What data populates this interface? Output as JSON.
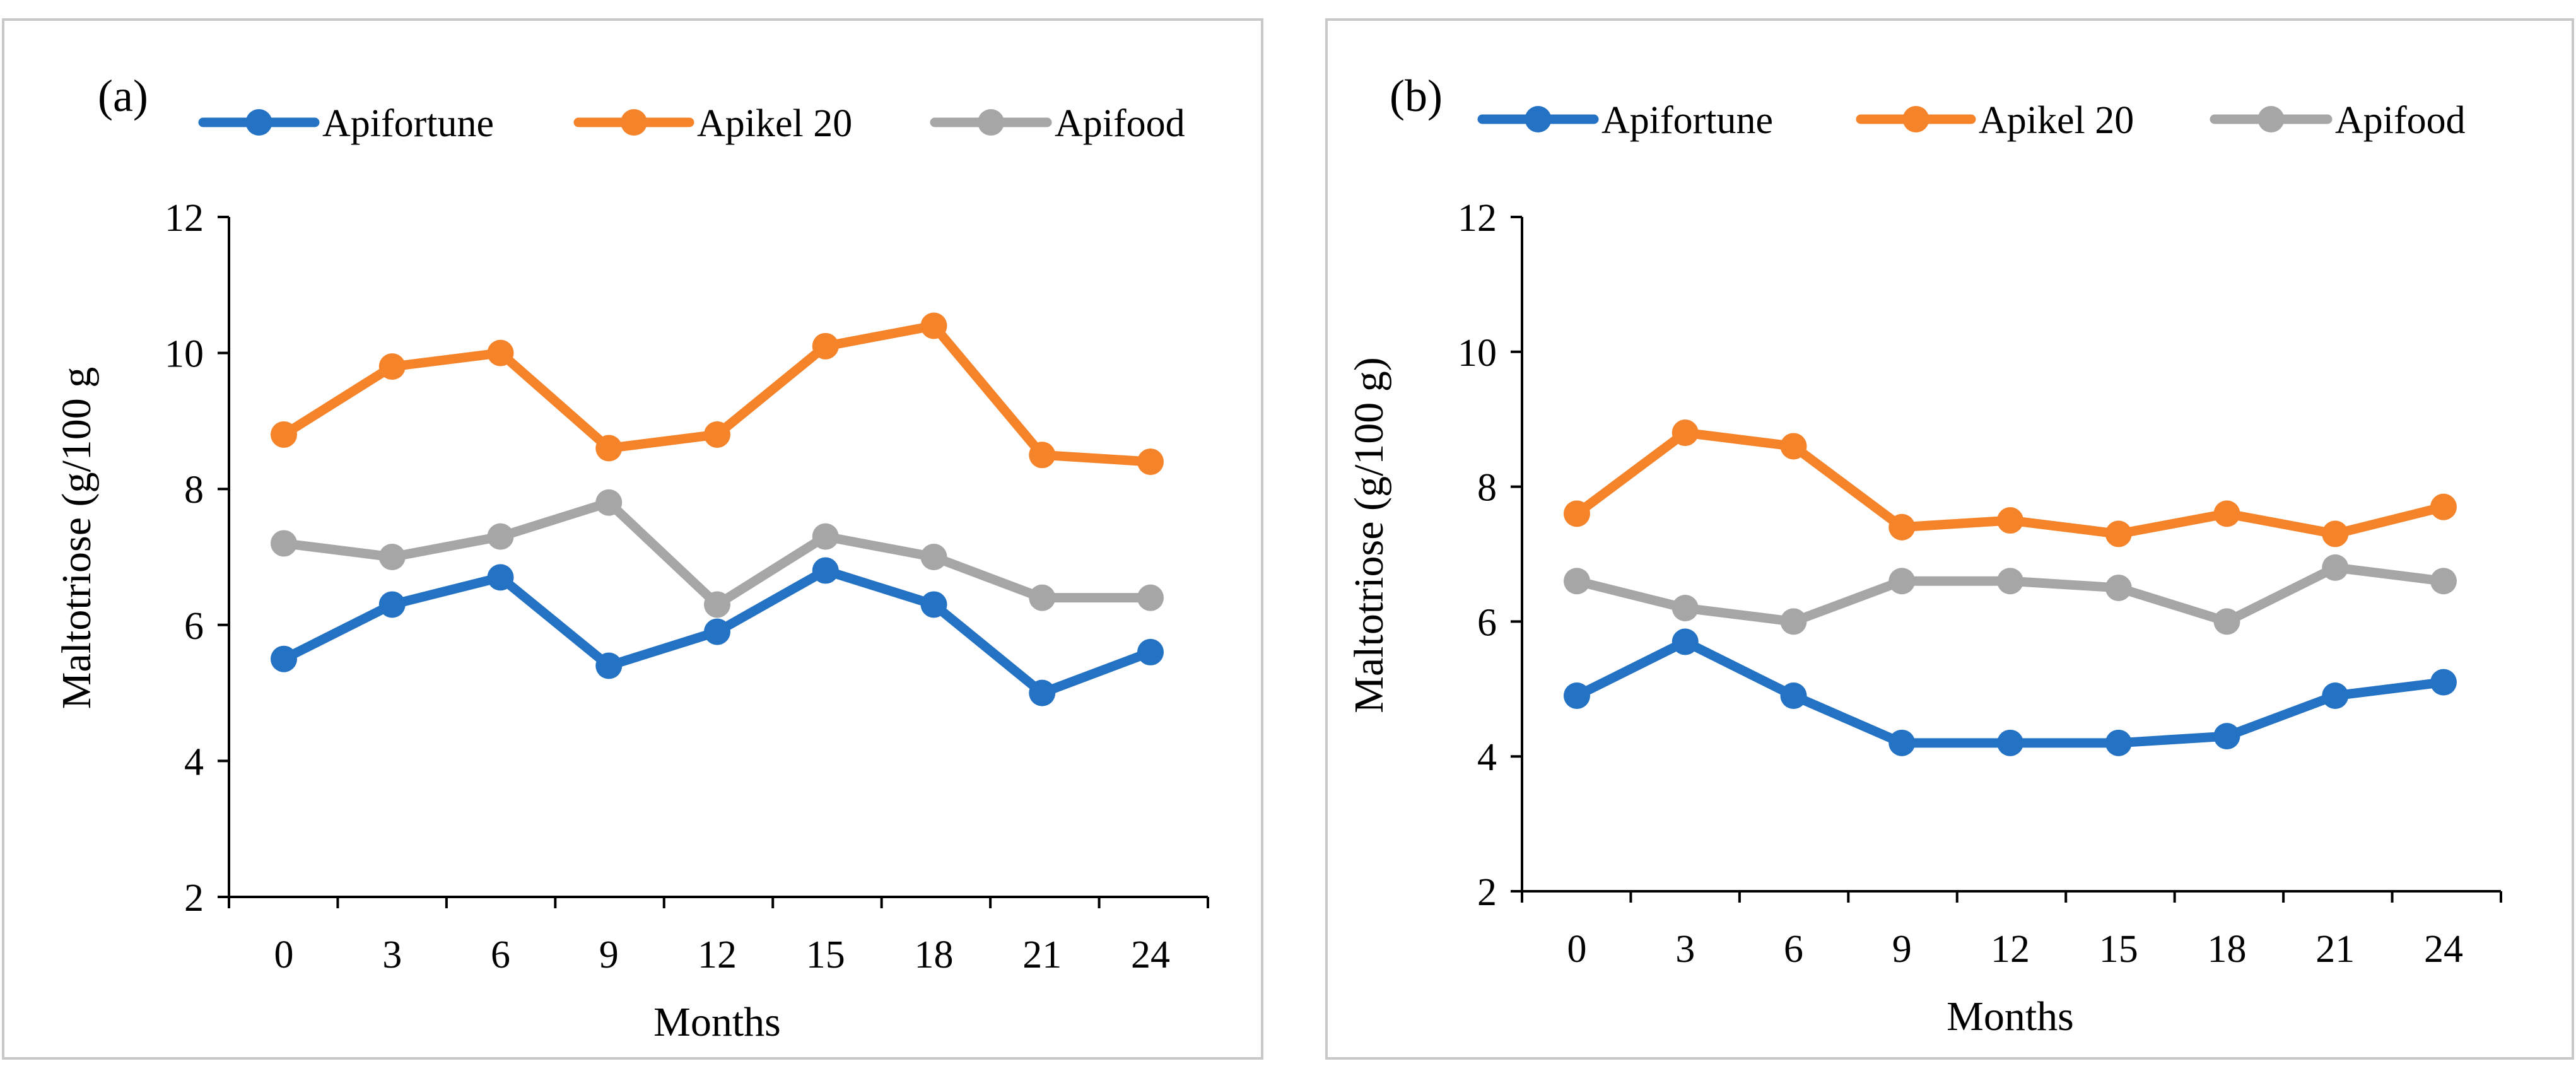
{
  "chart_data": [
    {
      "type": "line",
      "panel_label": "(a)",
      "xlabel": "Months",
      "ylabel": "Maltotriose (g/100 g",
      "categories": [
        "0",
        "3",
        "6",
        "9",
        "12",
        "15",
        "18",
        "21",
        "24"
      ],
      "ylim": [
        2,
        12
      ],
      "yticks": [
        "2",
        "4",
        "6",
        "8",
        "10",
        "12"
      ],
      "legend_position": "top",
      "series": [
        {
          "name": "Apifortune",
          "color": "#2372c4",
          "values": [
            5.5,
            6.3,
            6.7,
            5.4,
            5.9,
            6.8,
            6.3,
            5.0,
            5.6
          ]
        },
        {
          "name": "Apikel 20",
          "color": "#f5832a",
          "values": [
            8.8,
            9.8,
            10.0,
            8.6,
            8.8,
            10.1,
            10.4,
            8.5,
            8.4
          ]
        },
        {
          "name": "Apifood",
          "color": "#a6a6a6",
          "values": [
            7.2,
            7.0,
            7.3,
            7.8,
            6.3,
            7.3,
            7.0,
            6.4,
            6.4
          ]
        }
      ]
    },
    {
      "type": "line",
      "panel_label": "(b)",
      "xlabel": "Months",
      "ylabel": "Maltotriose (g/100 g)",
      "categories": [
        "0",
        "3",
        "6",
        "9",
        "12",
        "15",
        "18",
        "21",
        "24"
      ],
      "ylim": [
        2,
        12
      ],
      "yticks": [
        "2",
        "4",
        "6",
        "8",
        "10",
        "12"
      ],
      "legend_position": "top",
      "series": [
        {
          "name": "Apifortune",
          "color": "#2372c4",
          "values": [
            4.9,
            5.7,
            4.9,
            4.2,
            4.2,
            4.2,
            4.3,
            4.9,
            5.1
          ]
        },
        {
          "name": "Apikel 20",
          "color": "#f5832a",
          "values": [
            7.6,
            8.8,
            8.6,
            7.4,
            7.5,
            7.3,
            7.6,
            7.3,
            7.7
          ]
        },
        {
          "name": "Apifood",
          "color": "#a6a6a6",
          "values": [
            6.6,
            6.2,
            6.0,
            6.6,
            6.6,
            6.5,
            6.0,
            6.8,
            6.6
          ]
        }
      ]
    }
  ]
}
